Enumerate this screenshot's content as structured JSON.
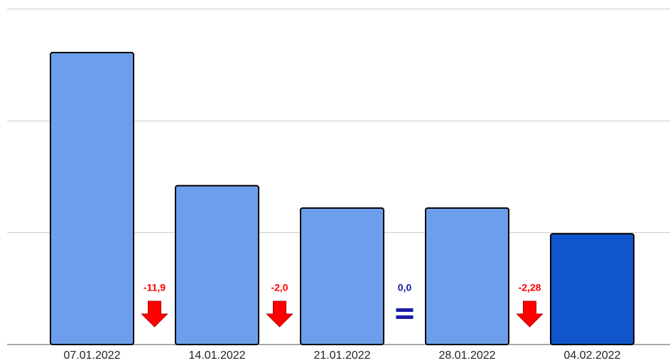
{
  "chart_data": {
    "type": "bar",
    "categories": [
      "07.01.2022",
      "14.01.2022",
      "21.01.2022",
      "28.01.2022",
      "04.02.2022"
    ],
    "values": [
      26.1,
      14.2,
      12.2,
      12.2,
      9.9
    ],
    "colors": [
      "#6d9eeb",
      "#6d9eeb",
      "#6d9eeb",
      "#6d9eeb",
      "#1155cc"
    ],
    "ylim": [
      0,
      30.8
    ],
    "yticks": [
      0,
      10,
      20,
      30
    ],
    "grid": true,
    "changes": [
      {
        "label": "-11,9",
        "direction": "down"
      },
      {
        "label": "-2,0",
        "direction": "down"
      },
      {
        "label": "0,0",
        "direction": "equal"
      },
      {
        "label": "-2,28",
        "direction": "down"
      }
    ]
  }
}
